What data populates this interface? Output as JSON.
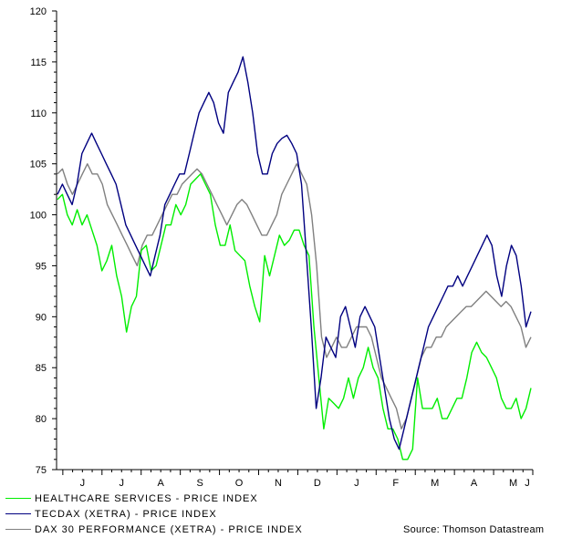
{
  "chart_data": {
    "type": "line",
    "title": "",
    "xlabel": "",
    "ylabel": "",
    "ylim": [
      75,
      120
    ],
    "yticks": [
      75,
      80,
      85,
      90,
      95,
      100,
      105,
      110,
      115,
      120
    ],
    "grid": false,
    "month_labels": [
      "J",
      "J",
      "A",
      "S",
      "O",
      "N",
      "D",
      "J",
      "F",
      "M",
      "A",
      "M",
      "J"
    ],
    "series": [
      {
        "name": "HEALTHCARE SERVICES - PRICE INDEX",
        "color": "#00ee00",
        "values": [
          101.5,
          102,
          100,
          99,
          100.5,
          99,
          100,
          98.5,
          97,
          94.5,
          95.5,
          97,
          94,
          92,
          88.5,
          91,
          92,
          96.5,
          97,
          94.5,
          95,
          97,
          99,
          99,
          101,
          100,
          101,
          103,
          103.5,
          104,
          103,
          102,
          99,
          97,
          97,
          99,
          96.5,
          96,
          95.5,
          93,
          91,
          89.5,
          96,
          94,
          96,
          98,
          97,
          97.5,
          98.5,
          98.5,
          97,
          96,
          89,
          84,
          79,
          82,
          81.5,
          81,
          82,
          84,
          82,
          84,
          85,
          87,
          85,
          84,
          81,
          79,
          79,
          78,
          76,
          76,
          77,
          84,
          81,
          81,
          81,
          82,
          80,
          80,
          81,
          82,
          82,
          84,
          86.5,
          87.5,
          86.5,
          86,
          85,
          84,
          82,
          81,
          81,
          82,
          80,
          81,
          83
        ]
      },
      {
        "name": "TECDAX (XETRA) - PRICE INDEX",
        "color": "#000080",
        "values": [
          102,
          103,
          102,
          101,
          103,
          106,
          107,
          108,
          107,
          106,
          105,
          104,
          103,
          101,
          99,
          98,
          97,
          96,
          95,
          94,
          96,
          98,
          101,
          102,
          103,
          104,
          104,
          106,
          108,
          110,
          111,
          112,
          111,
          109,
          108,
          112,
          113,
          114,
          115.5,
          113,
          110,
          106,
          104,
          104,
          106,
          107,
          107.5,
          107.8,
          107,
          106,
          103,
          96,
          89,
          81,
          84,
          88,
          87,
          86,
          90,
          91,
          89,
          87,
          90,
          91,
          90,
          89,
          86,
          83,
          80,
          78,
          77,
          79,
          81,
          83,
          85,
          87,
          89,
          90,
          91,
          92,
          93,
          93,
          94,
          93,
          94,
          95,
          96,
          97,
          98,
          97,
          94,
          92,
          95,
          97,
          96,
          93,
          89,
          90.5
        ]
      },
      {
        "name": "DAX 30 PERFORMANCE (XETRA) - PRICE INDEX",
        "color": "#808080",
        "values": [
          104,
          104.5,
          103,
          102,
          103,
          104,
          105,
          104,
          104,
          103,
          101,
          100,
          99,
          98,
          97,
          96,
          95,
          97,
          98,
          98,
          99,
          100,
          101,
          102,
          102,
          103,
          103.5,
          104,
          104.5,
          104,
          103,
          102,
          101,
          100,
          99,
          100,
          101,
          101.5,
          101,
          100,
          99,
          98,
          98,
          99,
          100,
          102,
          103,
          104,
          105,
          104,
          103,
          100,
          95,
          88,
          86,
          87,
          88,
          87,
          87,
          88,
          89,
          89,
          89,
          88,
          86,
          84,
          83,
          82,
          81,
          79,
          80,
          82,
          84,
          86,
          87,
          87,
          88,
          88,
          89,
          89.5,
          90,
          90.5,
          91,
          91,
          91.5,
          92,
          92.5,
          92,
          91.5,
          91,
          91.5,
          91,
          90,
          89,
          87,
          88
        ]
      }
    ]
  },
  "legend": {
    "items": [
      {
        "label": "HEALTHCARE SERVICES - PRICE INDEX",
        "color": "#00ee00"
      },
      {
        "label": "TECDAX (XETRA) - PRICE INDEX",
        "color": "#000080"
      },
      {
        "label": "DAX 30 PERFORMANCE (XETRA) - PRICE INDEX",
        "color": "#808080"
      }
    ]
  },
  "source_text": "Source: Thomson Datastream"
}
